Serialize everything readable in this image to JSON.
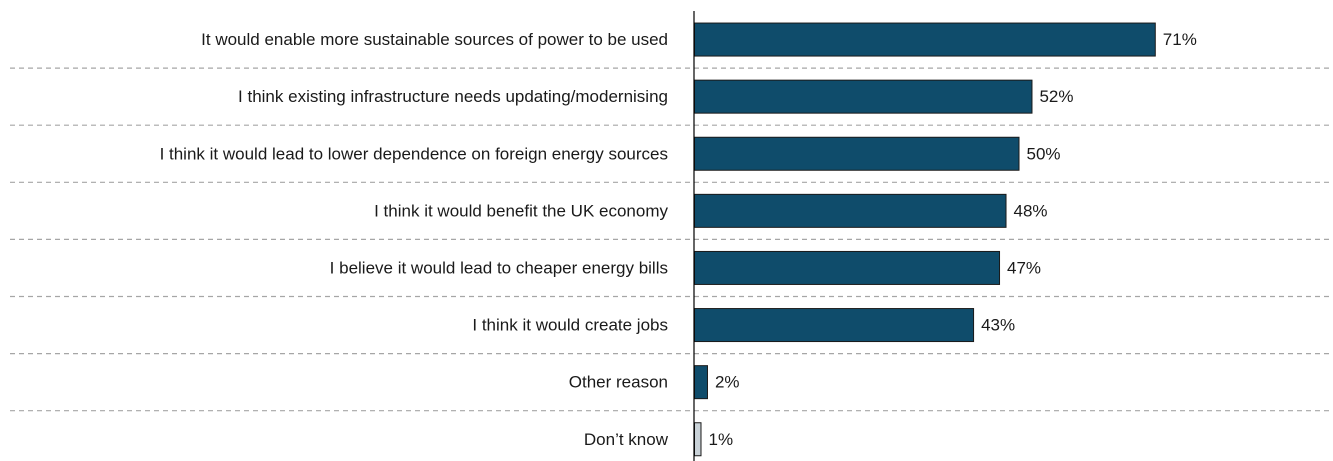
{
  "chart_data": {
    "type": "bar",
    "orientation": "horizontal",
    "categories": [
      "It would enable more sustainable sources of power to be used",
      "I think existing infrastructure needs updating/modernising",
      "I think it would lead to lower dependence on foreign energy sources",
      "I think it would benefit the UK economy",
      "I believe it would lead to cheaper energy bills",
      "I think it would create jobs",
      "Other reason",
      "Don’t know"
    ],
    "values": [
      71,
      52,
      50,
      48,
      47,
      43,
      2,
      1
    ],
    "value_labels": [
      "71%",
      "52%",
      "50%",
      "48%",
      "47%",
      "43%",
      "2%",
      "1%"
    ],
    "title": "",
    "xlabel": "",
    "ylabel": "",
    "xlim": [
      0,
      100
    ],
    "grid": "dashed separators between rows",
    "legend": "none",
    "colors": {
      "main": "#0f4c6b",
      "dont_know": "#c9d2d8",
      "bar_outline": "#1a1a1a"
    }
  }
}
